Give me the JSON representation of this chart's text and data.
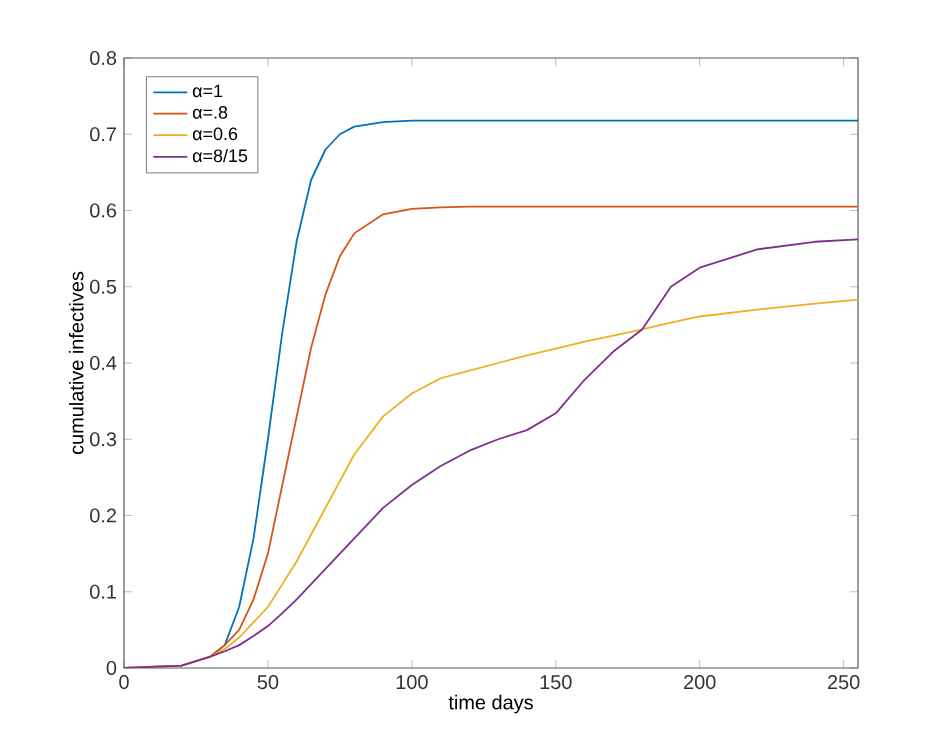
{
  "chart_data": {
    "type": "line",
    "xlabel": "time days",
    "ylabel": "cumulative infectives",
    "xlim": [
      0,
      255
    ],
    "ylim": [
      0,
      0.8
    ],
    "xticks": [
      0,
      50,
      100,
      150,
      200,
      250
    ],
    "yticks": [
      0,
      0.1,
      0.2,
      0.3,
      0.4,
      0.5,
      0.6,
      0.7,
      0.8
    ],
    "grid": false,
    "legend": "top left",
    "line_style": "solid",
    "marker": "none",
    "x": [
      0,
      20,
      30,
      35,
      40,
      45,
      50,
      55,
      60,
      65,
      70,
      75,
      80,
      90,
      100,
      110,
      120,
      130,
      140,
      150,
      160,
      170,
      180,
      190,
      200,
      220,
      240,
      255
    ],
    "series": [
      {
        "name": "α=1",
        "color": "#0072bd",
        "values": [
          null,
          null,
          0.015,
          0.03,
          0.08,
          0.17,
          0.3,
          0.44,
          0.56,
          0.64,
          0.68,
          0.7,
          0.71,
          0.716,
          0.718,
          0.718,
          0.718,
          0.718,
          0.718,
          0.718,
          0.718,
          0.718,
          0.718,
          0.718,
          0.718,
          0.718,
          0.718,
          0.718
        ]
      },
      {
        "name": "α=.8",
        "color": "#d95319",
        "values": [
          0,
          0.003,
          0.015,
          0.03,
          0.05,
          0.09,
          0.15,
          0.24,
          0.33,
          0.42,
          0.49,
          0.54,
          0.57,
          0.595,
          0.602,
          0.604,
          0.605,
          0.605,
          0.605,
          0.605,
          0.605,
          0.605,
          0.605,
          0.605,
          0.605,
          0.605,
          0.605,
          0.605
        ]
      },
      {
        "name": "α=0.6",
        "color": "#edb120",
        "values": [
          0,
          0.003,
          0.015,
          0.025,
          0.04,
          0.06,
          0.08,
          0.11,
          0.14,
          0.175,
          0.21,
          0.245,
          0.28,
          0.33,
          0.36,
          0.38,
          0.39,
          0.4,
          0.41,
          0.419,
          0.428,
          0.436,
          0.444,
          0.453,
          0.461,
          0.47,
          0.478,
          0.483
        ]
      },
      {
        "name": "α=8/15",
        "color": "#7e2f8e",
        "values": [
          0,
          0.003,
          0.015,
          0.022,
          0.03,
          0.042,
          0.055,
          0.072,
          0.09,
          0.11,
          0.13,
          0.15,
          0.17,
          0.21,
          0.24,
          0.265,
          0.285,
          0.3,
          0.312,
          0.334,
          0.378,
          0.415,
          0.444,
          0.5,
          0.525,
          0.549,
          0.559,
          0.562
        ]
      }
    ]
  }
}
